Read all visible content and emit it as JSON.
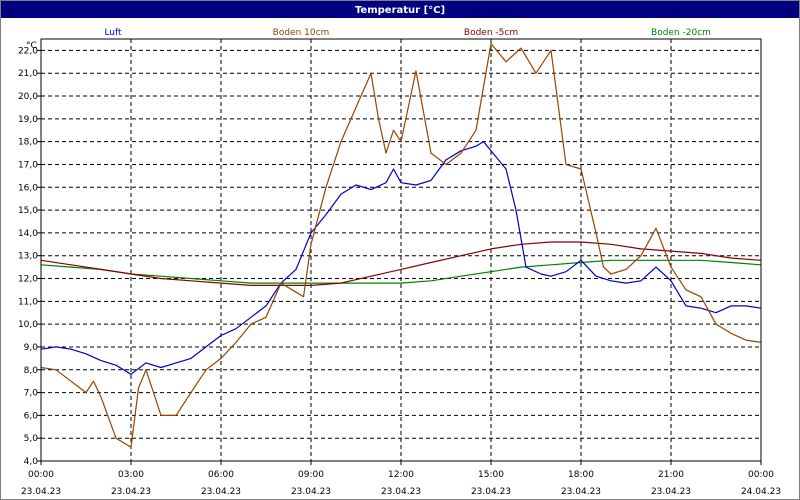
{
  "chart_data": {
    "type": "line",
    "title": "Temperatur [°C]",
    "yunit": "°C",
    "ylim": [
      4.0,
      22.5
    ],
    "yticks": [
      "4,0",
      "5,0",
      "6,0",
      "7,0",
      "8,0",
      "9,0",
      "10,0",
      "11,0",
      "12,0",
      "13,0",
      "14,0",
      "15,0",
      "16,0",
      "17,0",
      "18,0",
      "19,0",
      "20,0",
      "21,0",
      "22,0"
    ],
    "xlim": [
      "23.04.23 00:00",
      "24.04.23 00:00"
    ],
    "xticks": [
      {
        "time": "00:00",
        "date": "23.04.23"
      },
      {
        "time": "03:00",
        "date": "23.04.23"
      },
      {
        "time": "06:00",
        "date": "23.04.23"
      },
      {
        "time": "09:00",
        "date": "23.04.23"
      },
      {
        "time": "12:00",
        "date": "23.04.23"
      },
      {
        "time": "15:00",
        "date": "23.04.23"
      },
      {
        "time": "18:00",
        "date": "23.04.23"
      },
      {
        "time": "21:00",
        "date": "23.04.23"
      },
      {
        "time": "00:00",
        "date": "24.04.23"
      }
    ],
    "grid": true,
    "legend_position": "top",
    "series": [
      {
        "name": "Luft",
        "color": "#0000cc",
        "points": [
          [
            "00:00",
            8.9
          ],
          [
            "00:30",
            9.0
          ],
          [
            "01:00",
            8.9
          ],
          [
            "01:30",
            8.7
          ],
          [
            "02:00",
            8.4
          ],
          [
            "02:30",
            8.2
          ],
          [
            "03:00",
            7.8
          ],
          [
            "03:30",
            8.3
          ],
          [
            "04:00",
            8.1
          ],
          [
            "04:30",
            8.3
          ],
          [
            "05:00",
            8.5
          ],
          [
            "05:30",
            9.0
          ],
          [
            "06:00",
            9.5
          ],
          [
            "06:30",
            9.8
          ],
          [
            "07:00",
            10.3
          ],
          [
            "07:30",
            10.8
          ],
          [
            "08:00",
            11.8
          ],
          [
            "08:30",
            12.4
          ],
          [
            "09:00",
            14.0
          ],
          [
            "09:30",
            14.8
          ],
          [
            "10:00",
            15.7
          ],
          [
            "10:30",
            16.1
          ],
          [
            "11:00",
            15.9
          ],
          [
            "11:30",
            16.2
          ],
          [
            "11:45",
            16.8
          ],
          [
            "12:00",
            16.2
          ],
          [
            "12:30",
            16.1
          ],
          [
            "13:00",
            16.3
          ],
          [
            "13:30",
            17.2
          ],
          [
            "14:00",
            17.6
          ],
          [
            "14:30",
            17.8
          ],
          [
            "14:45",
            18.0
          ],
          [
            "15:00",
            17.6
          ],
          [
            "15:30",
            16.8
          ],
          [
            "15:50",
            15.0
          ],
          [
            "16:10",
            12.5
          ],
          [
            "16:40",
            12.2
          ],
          [
            "17:00",
            12.1
          ],
          [
            "17:30",
            12.3
          ],
          [
            "18:00",
            12.8
          ],
          [
            "18:30",
            12.1
          ],
          [
            "19:00",
            11.9
          ],
          [
            "19:30",
            11.8
          ],
          [
            "20:00",
            11.9
          ],
          [
            "20:30",
            12.5
          ],
          [
            "21:00",
            11.9
          ],
          [
            "21:30",
            10.8
          ],
          [
            "22:00",
            10.7
          ],
          [
            "22:30",
            10.5
          ],
          [
            "23:00",
            10.8
          ],
          [
            "23:30",
            10.8
          ],
          [
            "24:00",
            10.7
          ]
        ]
      },
      {
        "name": "Boden 10cm",
        "color": "#994400",
        "points": [
          [
            "00:00",
            8.1
          ],
          [
            "00:30",
            8.0
          ],
          [
            "01:00",
            7.5
          ],
          [
            "01:30",
            7.0
          ],
          [
            "01:45",
            7.5
          ],
          [
            "02:00",
            6.8
          ],
          [
            "02:30",
            5.0
          ],
          [
            "03:00",
            4.6
          ],
          [
            "03:15",
            7.2
          ],
          [
            "03:30",
            8.0
          ],
          [
            "03:45",
            7.0
          ],
          [
            "04:00",
            6.0
          ],
          [
            "04:30",
            6.0
          ],
          [
            "05:00",
            7.0
          ],
          [
            "05:30",
            8.0
          ],
          [
            "06:00",
            8.5
          ],
          [
            "06:30",
            9.2
          ],
          [
            "07:00",
            10.0
          ],
          [
            "07:30",
            10.3
          ],
          [
            "08:00",
            11.8
          ],
          [
            "08:30",
            11.4
          ],
          [
            "08:45",
            11.2
          ],
          [
            "09:00",
            13.5
          ],
          [
            "09:30",
            16.0
          ],
          [
            "10:00",
            18.0
          ],
          [
            "10:30",
            19.5
          ],
          [
            "11:00",
            21.0
          ],
          [
            "11:15",
            19.0
          ],
          [
            "11:30",
            17.5
          ],
          [
            "11:45",
            18.5
          ],
          [
            "12:00",
            18.0
          ],
          [
            "12:30",
            21.1
          ],
          [
            "13:00",
            17.5
          ],
          [
            "13:30",
            17.0
          ],
          [
            "14:00",
            17.5
          ],
          [
            "14:30",
            18.5
          ],
          [
            "15:00",
            22.3
          ],
          [
            "15:30",
            21.5
          ],
          [
            "16:00",
            22.1
          ],
          [
            "16:30",
            21.0
          ],
          [
            "17:00",
            22.0
          ],
          [
            "17:30",
            17.0
          ],
          [
            "18:00",
            16.8
          ],
          [
            "18:30",
            14.0
          ],
          [
            "18:45",
            12.5
          ],
          [
            "19:00",
            12.2
          ],
          [
            "19:30",
            12.4
          ],
          [
            "20:00",
            13.0
          ],
          [
            "20:30",
            14.2
          ],
          [
            "21:00",
            12.5
          ],
          [
            "21:30",
            11.5
          ],
          [
            "22:00",
            11.2
          ],
          [
            "22:30",
            10.0
          ],
          [
            "23:00",
            9.6
          ],
          [
            "23:30",
            9.3
          ],
          [
            "24:00",
            9.2
          ]
        ]
      },
      {
        "name": "Boden -5cm",
        "color": "#880000",
        "points": [
          [
            "00:00",
            12.8
          ],
          [
            "01:00",
            12.6
          ],
          [
            "02:00",
            12.4
          ],
          [
            "03:00",
            12.2
          ],
          [
            "04:00",
            12.0
          ],
          [
            "05:00",
            11.9
          ],
          [
            "06:00",
            11.8
          ],
          [
            "07:00",
            11.7
          ],
          [
            "08:00",
            11.7
          ],
          [
            "09:00",
            11.7
          ],
          [
            "10:00",
            11.8
          ],
          [
            "11:00",
            12.1
          ],
          [
            "12:00",
            12.4
          ],
          [
            "13:00",
            12.7
          ],
          [
            "14:00",
            13.0
          ],
          [
            "15:00",
            13.3
          ],
          [
            "16:00",
            13.5
          ],
          [
            "17:00",
            13.6
          ],
          [
            "18:00",
            13.6
          ],
          [
            "19:00",
            13.5
          ],
          [
            "20:00",
            13.3
          ],
          [
            "21:00",
            13.2
          ],
          [
            "22:00",
            13.1
          ],
          [
            "23:00",
            12.9
          ],
          [
            "24:00",
            12.8
          ]
        ]
      },
      {
        "name": "Boden -20cm",
        "color": "#008000",
        "points": [
          [
            "00:00",
            12.6
          ],
          [
            "01:00",
            12.5
          ],
          [
            "02:00",
            12.4
          ],
          [
            "03:00",
            12.2
          ],
          [
            "04:00",
            12.1
          ],
          [
            "05:00",
            12.0
          ],
          [
            "06:00",
            11.9
          ],
          [
            "07:00",
            11.8
          ],
          [
            "08:00",
            11.8
          ],
          [
            "09:00",
            11.8
          ],
          [
            "10:00",
            11.8
          ],
          [
            "11:00",
            11.8
          ],
          [
            "12:00",
            11.8
          ],
          [
            "13:00",
            11.9
          ],
          [
            "14:00",
            12.1
          ],
          [
            "15:00",
            12.3
          ],
          [
            "16:00",
            12.5
          ],
          [
            "17:00",
            12.6
          ],
          [
            "18:00",
            12.7
          ],
          [
            "19:00",
            12.8
          ],
          [
            "20:00",
            12.8
          ],
          [
            "21:00",
            12.8
          ],
          [
            "22:00",
            12.8
          ],
          [
            "23:00",
            12.7
          ],
          [
            "24:00",
            12.6
          ]
        ]
      }
    ]
  }
}
